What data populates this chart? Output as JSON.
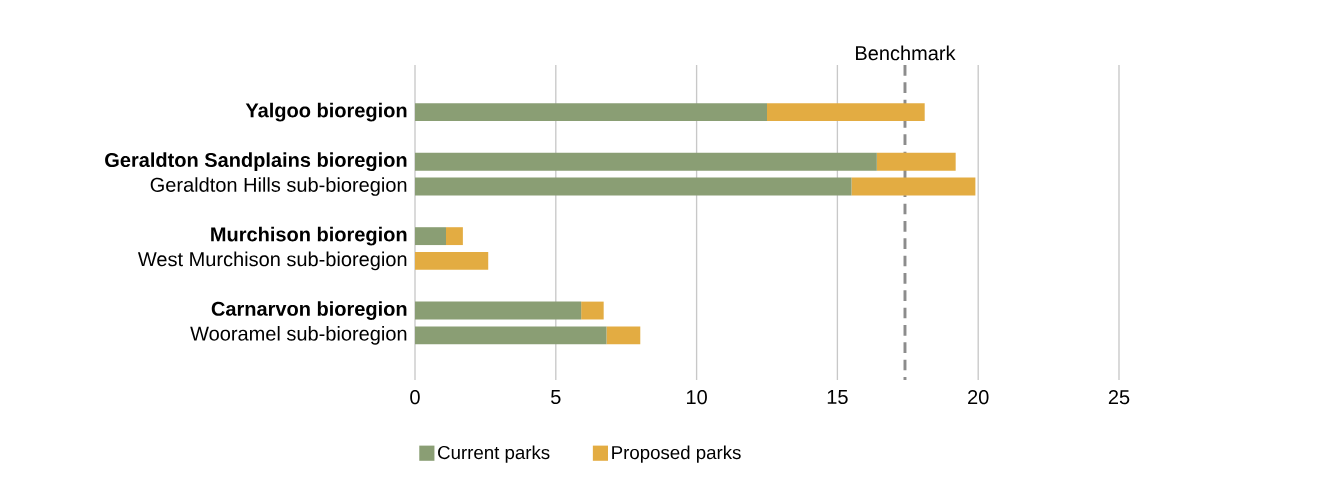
{
  "chart_data": {
    "type": "bar",
    "orientation": "horizontal",
    "stacked": true,
    "categories": [
      "Yalgoo bioregion",
      null,
      "Geraldton Sandplains bioregion",
      "Geraldton Hills sub-bioregion",
      null,
      "Murchison bioregion",
      "West Murchison sub-bioregion",
      null,
      "Carnarvon bioregion",
      "Wooramel sub-bioregion"
    ],
    "series": [
      {
        "name": "Current parks",
        "color": "#8a9e74",
        "values": [
          12.5,
          null,
          16.4,
          15.5,
          null,
          1.1,
          0,
          null,
          5.9,
          6.8
        ]
      },
      {
        "name": "Proposed parks",
        "color": "#e3ac42",
        "values": [
          5.6,
          null,
          2.8,
          4.4,
          null,
          0.6,
          2.6,
          null,
          0.8,
          1.2
        ]
      }
    ],
    "xlim": [
      0,
      25
    ],
    "xticks": [
      0,
      5,
      10,
      15,
      20,
      25
    ],
    "grid": "x",
    "legend": "bottom",
    "ref_lines": [
      {
        "axis": "x",
        "value": 17.4,
        "label": "Benchmark",
        "color": "#8c8c8c",
        "line_style": "dashed"
      }
    ]
  }
}
